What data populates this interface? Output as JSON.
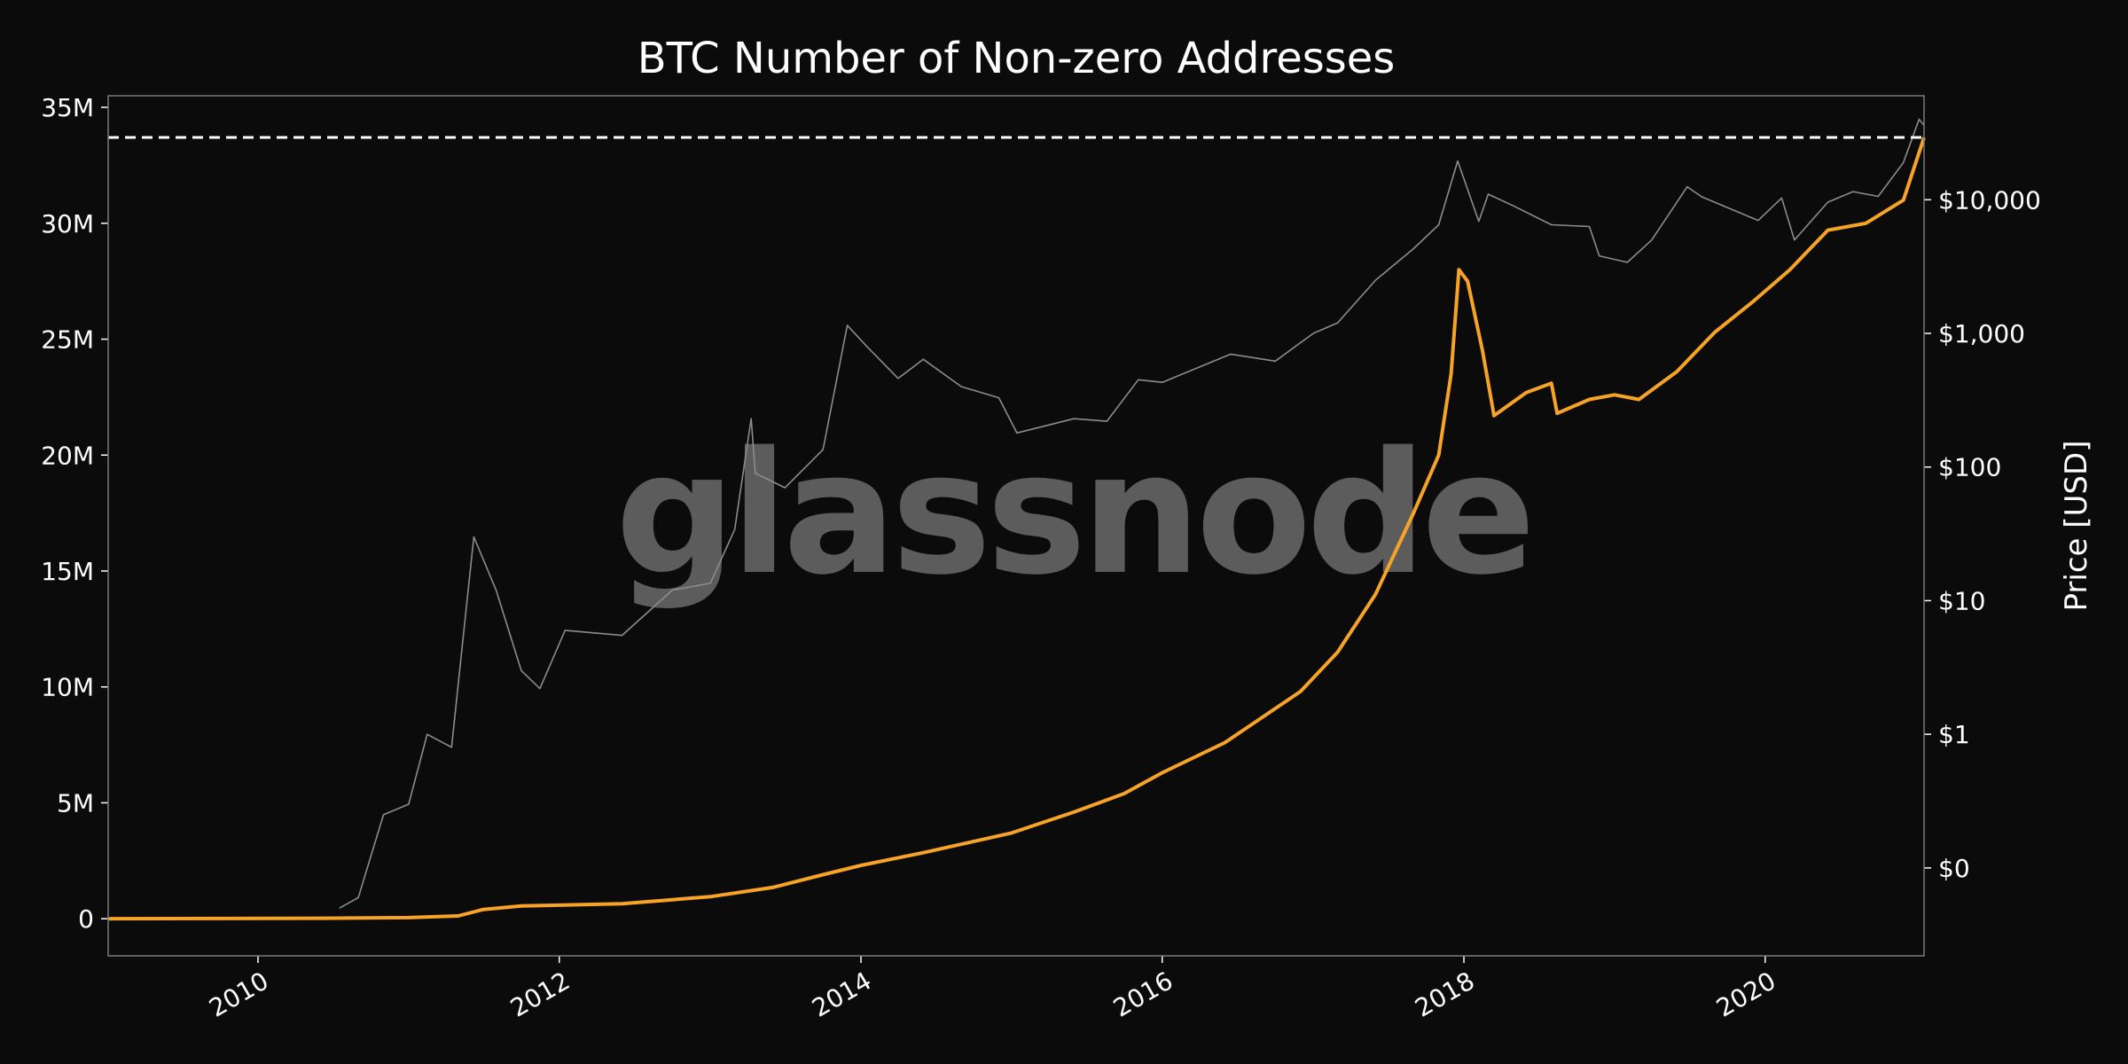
{
  "chart_data": {
    "type": "line",
    "title": "BTC Number of Non-zero Addresses",
    "xlabel": "",
    "ylabel_left": "",
    "ylabel_right": "Price [USD]",
    "watermark": "glassnode",
    "x_range": [
      "2009-01-03",
      "2021-01-20"
    ],
    "x_ticks": [
      "2010",
      "2012",
      "2014",
      "2016",
      "2018",
      "2020"
    ],
    "y_left": {
      "range": [
        -1600000,
        35500000
      ],
      "ticks": [
        0,
        5000000,
        10000000,
        15000000,
        20000000,
        25000000,
        30000000,
        35000000
      ],
      "tick_labels": [
        "0",
        "5M",
        "10M",
        "15M",
        "20M",
        "25M",
        "30M",
        "35M"
      ]
    },
    "y_right": {
      "scale": "log",
      "range": [
        0.022,
        60000
      ],
      "ticks": [
        0.1,
        1,
        10,
        100,
        1000,
        10000
      ],
      "tick_labels": [
        "$0",
        "$1",
        "$10",
        "$100",
        "$1,000",
        "$10,000"
      ]
    },
    "ath_reference": {
      "value": 33700000,
      "style": "dashed",
      "color": "#ffffff"
    },
    "grid": false,
    "series": [
      {
        "axis": "left",
        "color": "#f7a326",
        "points": [
          [
            "2009-01-03",
            0
          ],
          [
            "2010-06-01",
            20000
          ],
          [
            "2011-01-01",
            50000
          ],
          [
            "2011-05-01",
            120000
          ],
          [
            "2011-07-01",
            400000
          ],
          [
            "2011-10-01",
            550000
          ],
          [
            "2012-06-01",
            650000
          ],
          [
            "2013-01-01",
            950000
          ],
          [
            "2013-06-01",
            1350000
          ],
          [
            "2013-10-01",
            1900000
          ],
          [
            "2014-01-01",
            2300000
          ],
          [
            "2014-06-01",
            2850000
          ],
          [
            "2015-01-01",
            3700000
          ],
          [
            "2015-06-01",
            4600000
          ],
          [
            "2015-10-01",
            5400000
          ],
          [
            "2016-01-01",
            6300000
          ],
          [
            "2016-06-01",
            7600000
          ],
          [
            "2016-12-01",
            9800000
          ],
          [
            "2017-03-01",
            11500000
          ],
          [
            "2017-06-01",
            14000000
          ],
          [
            "2017-09-01",
            17500000
          ],
          [
            "2017-11-01",
            20000000
          ],
          [
            "2017-12-01",
            23500000
          ],
          [
            "2017-12-20",
            28000000
          ],
          [
            "2018-01-10",
            27500000
          ],
          [
            "2018-02-15",
            24500000
          ],
          [
            "2018-03-15",
            21700000
          ],
          [
            "2018-06-01",
            22700000
          ],
          [
            "2018-08-01",
            23100000
          ],
          [
            "2018-08-15",
            21800000
          ],
          [
            "2018-11-01",
            22400000
          ],
          [
            "2019-01-01",
            22600000
          ],
          [
            "2019-03-01",
            22400000
          ],
          [
            "2019-06-01",
            23600000
          ],
          [
            "2019-09-01",
            25300000
          ],
          [
            "2019-12-01",
            26600000
          ],
          [
            "2020-03-01",
            28000000
          ],
          [
            "2020-06-01",
            29700000
          ],
          [
            "2020-09-01",
            30000000
          ],
          [
            "2020-12-01",
            31000000
          ],
          [
            "2021-01-20",
            33700000
          ]
        ]
      },
      {
        "axis": "right",
        "color": "#8c8c8c",
        "points": [
          [
            "2010-07-17",
            0.05
          ],
          [
            "2010-09-01",
            0.06
          ],
          [
            "2010-11-01",
            0.25
          ],
          [
            "2011-01-01",
            0.3
          ],
          [
            "2011-02-15",
            1
          ],
          [
            "2011-04-15",
            0.8
          ],
          [
            "2011-05-15",
            6
          ],
          [
            "2011-06-08",
            30
          ],
          [
            "2011-08-01",
            12
          ],
          [
            "2011-10-01",
            3
          ],
          [
            "2011-11-15",
            2.2
          ],
          [
            "2012-01-15",
            6
          ],
          [
            "2012-06-01",
            5.5
          ],
          [
            "2012-10-01",
            12
          ],
          [
            "2013-01-01",
            13.5
          ],
          [
            "2013-03-01",
            34
          ],
          [
            "2013-04-10",
            230
          ],
          [
            "2013-04-20",
            90
          ],
          [
            "2013-07-01",
            70
          ],
          [
            "2013-10-01",
            135
          ],
          [
            "2013-11-29",
            1150
          ],
          [
            "2014-01-15",
            800
          ],
          [
            "2014-04-01",
            460
          ],
          [
            "2014-06-01",
            640
          ],
          [
            "2014-09-01",
            400
          ],
          [
            "2014-12-01",
            330
          ],
          [
            "2015-01-14",
            180
          ],
          [
            "2015-06-01",
            230
          ],
          [
            "2015-08-20",
            220
          ],
          [
            "2015-11-04",
            450
          ],
          [
            "2016-01-01",
            430
          ],
          [
            "2016-06-15",
            700
          ],
          [
            "2016-10-01",
            620
          ],
          [
            "2017-01-01",
            1000
          ],
          [
            "2017-03-01",
            1200
          ],
          [
            "2017-06-01",
            2500
          ],
          [
            "2017-09-01",
            4300
          ],
          [
            "2017-11-01",
            6500
          ],
          [
            "2017-12-17",
            19500
          ],
          [
            "2018-02-06",
            6900
          ],
          [
            "2018-03-01",
            11000
          ],
          [
            "2018-05-01",
            9000
          ],
          [
            "2018-08-01",
            6500
          ],
          [
            "2018-11-01",
            6300
          ],
          [
            "2018-11-25",
            3800
          ],
          [
            "2019-02-01",
            3400
          ],
          [
            "2019-04-01",
            5000
          ],
          [
            "2019-06-26",
            12500
          ],
          [
            "2019-08-01",
            10500
          ],
          [
            "2019-12-15",
            7000
          ],
          [
            "2020-02-10",
            10300
          ],
          [
            "2020-03-12",
            5000
          ],
          [
            "2020-06-01",
            9600
          ],
          [
            "2020-08-01",
            11500
          ],
          [
            "2020-10-01",
            10600
          ],
          [
            "2020-12-01",
            19000
          ],
          [
            "2021-01-08",
            40000
          ],
          [
            "2021-01-20",
            36000
          ]
        ]
      }
    ]
  }
}
